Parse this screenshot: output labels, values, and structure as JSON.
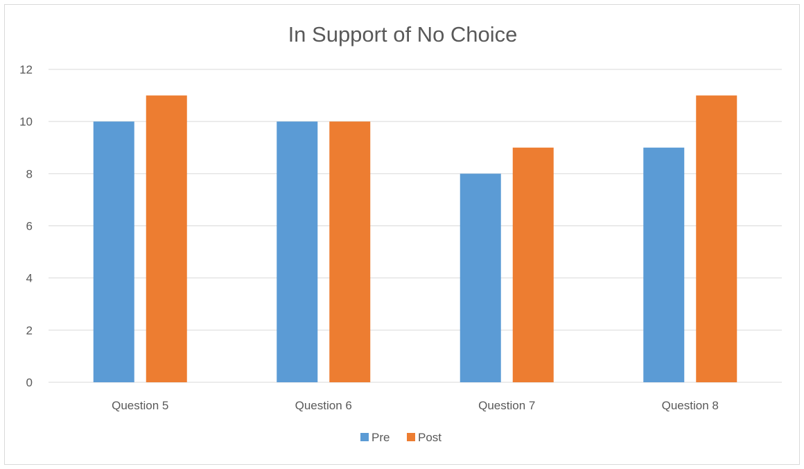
{
  "chart_data": {
    "type": "bar",
    "title": "In Support of No Choice",
    "xlabel": "",
    "ylabel": "",
    "categories": [
      "Question 5",
      "Question 6",
      "Question 7",
      "Question 8"
    ],
    "series": [
      {
        "name": "Pre",
        "values": [
          10,
          10,
          8,
          9
        ],
        "color": "#5B9BD5"
      },
      {
        "name": "Post",
        "values": [
          11,
          10,
          9,
          11
        ],
        "color": "#ED7D31"
      }
    ],
    "ylim": [
      0,
      12
    ],
    "yticks": [
      "0",
      "2",
      "4",
      "6",
      "8",
      "10",
      "12"
    ],
    "grid": true,
    "legend_position": "bottom"
  }
}
